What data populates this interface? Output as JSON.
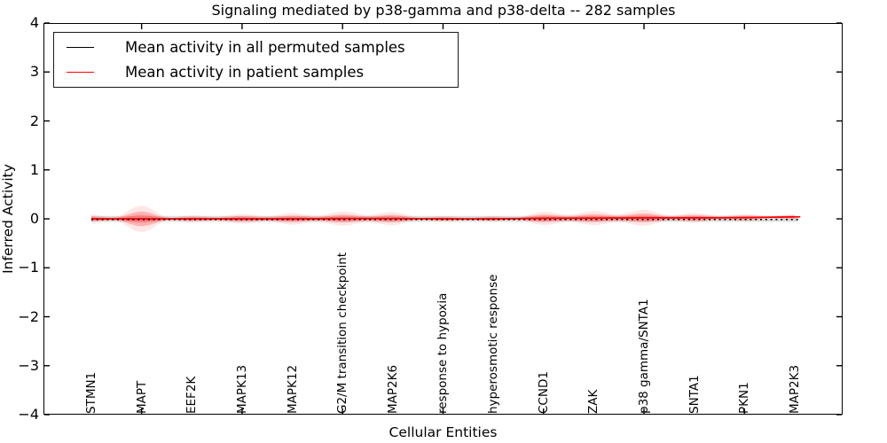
{
  "chart_data": {
    "type": "line",
    "title": "Signaling mediated by p38-gamma and p38-delta -- 282 samples",
    "xlabel": "Cellular Entities",
    "ylabel": "Inferred Activity",
    "ylim": [
      -4,
      4
    ],
    "yticks": [
      -4,
      -3,
      -2,
      -1,
      0,
      1,
      2,
      3,
      4
    ],
    "grid": false,
    "categories": [
      "STMN1",
      "MAPT",
      "EEF2K",
      "MAPK13",
      "MAPK12",
      "G2/M transition checkpoint",
      "MAP2K6",
      "response to hypoxia",
      "hyperosmotic response",
      "CCND1",
      "ZAK",
      "p38 gamma/SNTA1",
      "SNTA1",
      "PKN1",
      "MAP2K3"
    ],
    "legend": {
      "position": "upper left",
      "entries": [
        {
          "label": "Mean activity in all permuted samples",
          "color": "#000000"
        },
        {
          "label": "Mean activity in patient samples",
          "color": "#ff0000"
        }
      ]
    },
    "series": [
      {
        "name": "Mean activity in all permuted samples",
        "color": "#000000",
        "line_style": "dotted",
        "values": [
          0,
          0,
          0,
          0,
          0,
          0,
          0,
          0,
          0,
          0,
          0,
          0,
          0,
          0,
          0
        ]
      },
      {
        "name": "Mean activity in patient samples",
        "color": "#ff0000",
        "line_style": "solid",
        "values": [
          0,
          0,
          0,
          0,
          0,
          0.005,
          0.005,
          0,
          0,
          0.01,
          0.015,
          0.02,
          0.02,
          0.025,
          0.04
        ]
      }
    ],
    "bands": [
      {
        "name": "permuted samples spread",
        "color": "#b3b3b3",
        "half_widths": [
          0.058,
          0.058,
          0.058,
          0.058,
          0.058,
          0.058,
          0.058,
          0.058,
          0.058,
          0.058,
          0.058,
          0.058,
          0.058,
          0.058,
          0.058
        ]
      },
      {
        "name": "patient samples spread",
        "color": "#ff3b3b",
        "half_widths": [
          0.05,
          0.15,
          0.04,
          0.055,
          0.065,
          0.08,
          0.075,
          0.03,
          0.03,
          0.075,
          0.08,
          0.09,
          0.055,
          0.04,
          0.03
        ]
      }
    ]
  }
}
